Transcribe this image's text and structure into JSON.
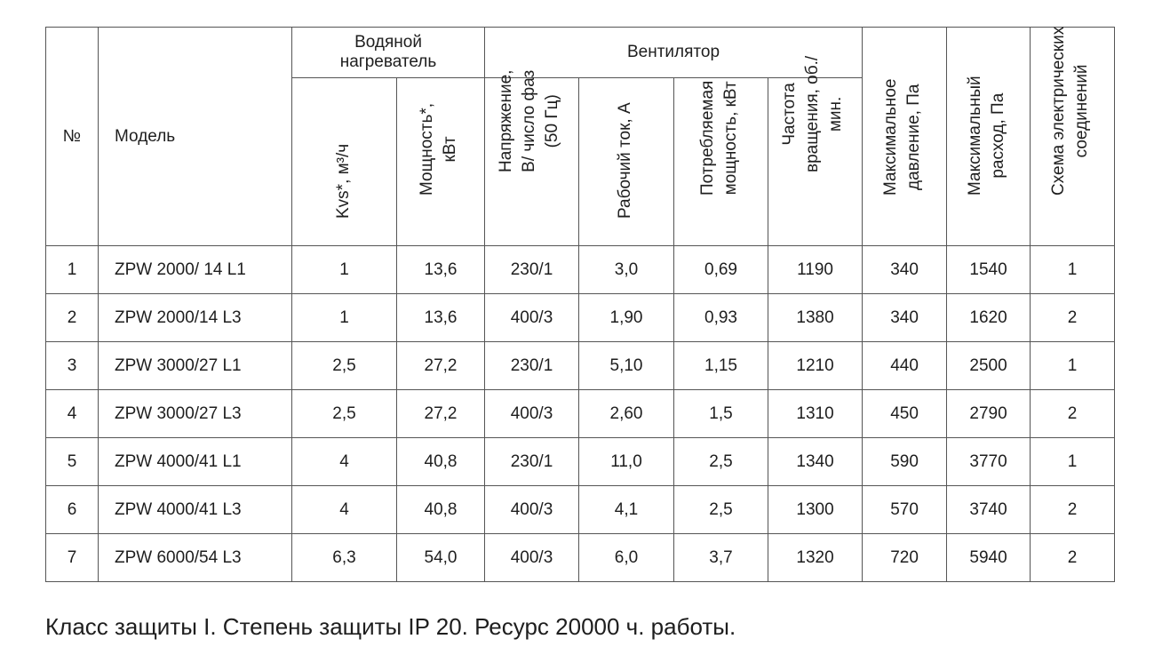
{
  "headers": {
    "num": "№",
    "model": "Модель",
    "water_heater": "Водяной нагреватель",
    "fan": "Вентилятор",
    "kvs": "Kvs*, м³/ч",
    "power_line1": "Мощность*,",
    "power_line2": "кВт",
    "voltage_line1": "Напряжение,",
    "voltage_line2": "В/ число фаз",
    "voltage_line3": "(50 Гц)",
    "current": "Рабочий ток, А",
    "consumed_line1": "Потребляемая",
    "consumed_line2": "мощность, кВт",
    "rpm_line1": "Частота",
    "rpm_line2": "вращения, об./",
    "rpm_line3": "мин.",
    "max_pressure_line1": "Максимальное",
    "max_pressure_line2": "давление, Па",
    "max_flow_line1": "Максимальный",
    "max_flow_line2": "расход, Па",
    "scheme_line1": "Схема электрических",
    "scheme_line2": "соединений"
  },
  "rows": [
    {
      "num": "1",
      "model": "ZPW 2000/ 14 L1",
      "kvs": "1",
      "power": "13,6",
      "voltage": "230/1",
      "current": "3,0",
      "consumed": "0,69",
      "rpm": "1190",
      "pressure": "340",
      "flow": "1540",
      "scheme": "1"
    },
    {
      "num": "2",
      "model": "ZPW 2000/14 L3",
      "kvs": "1",
      "power": "13,6",
      "voltage": "400/3",
      "current": "1,90",
      "consumed": "0,93",
      "rpm": "1380",
      "pressure": "340",
      "flow": "1620",
      "scheme": "2"
    },
    {
      "num": "3",
      "model": "ZPW 3000/27 L1",
      "kvs": "2,5",
      "power": "27,2",
      "voltage": "230/1",
      "current": "5,10",
      "consumed": "1,15",
      "rpm": "1210",
      "pressure": "440",
      "flow": "2500",
      "scheme": "1"
    },
    {
      "num": "4",
      "model": "ZPW 3000/27 L3",
      "kvs": "2,5",
      "power": "27,2",
      "voltage": "400/3",
      "current": "2,60",
      "consumed": "1,5",
      "rpm": "1310",
      "pressure": "450",
      "flow": "2790",
      "scheme": "2"
    },
    {
      "num": "5",
      "model": "ZPW 4000/41 L1",
      "kvs": "4",
      "power": "40,8",
      "voltage": "230/1",
      "current": "11,0",
      "consumed": "2,5",
      "rpm": "1340",
      "pressure": "590",
      "flow": "3770",
      "scheme": "1"
    },
    {
      "num": "6",
      "model": "ZPW 4000/41 L3",
      "kvs": "4",
      "power": "40,8",
      "voltage": "400/3",
      "current": "4,1",
      "consumed": "2,5",
      "rpm": "1300",
      "pressure": "570",
      "flow": "3740",
      "scheme": "2"
    },
    {
      "num": "7",
      "model": "ZPW 6000/54 L3",
      "kvs": "6,3",
      "power": "54,0",
      "voltage": "400/3",
      "current": "6,0",
      "consumed": "3,7",
      "rpm": "1320",
      "pressure": "720",
      "flow": "5940",
      "scheme": "2"
    }
  ],
  "note": "Класс защиты I. Степень защиты IP 20. Ресурс 20000 ч. работы."
}
